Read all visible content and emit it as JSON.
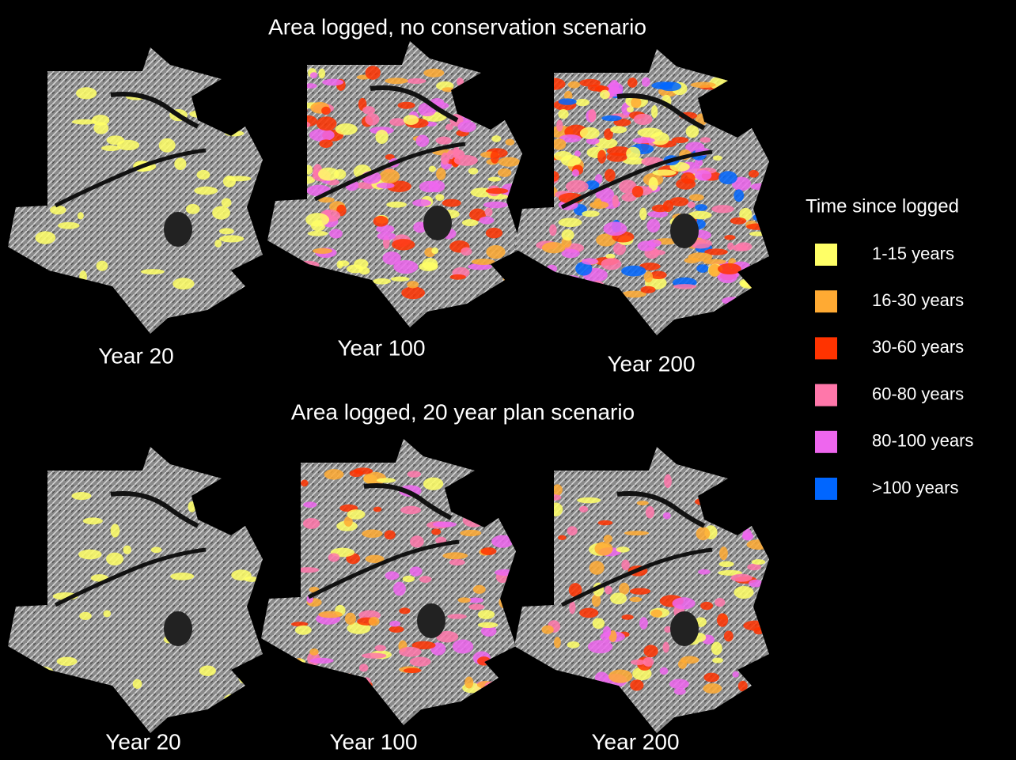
{
  "panels": [
    {
      "title": "Area logged, no conservation scenario",
      "maps": [
        {
          "label": "Year 20"
        },
        {
          "label": "Year 100"
        },
        {
          "label": "Year 200"
        }
      ]
    },
    {
      "title": "Area logged, 20 year plan scenario",
      "maps": [
        {
          "label": "Year 20"
        },
        {
          "label": "Year 100"
        },
        {
          "label": "Year 200"
        }
      ]
    }
  ],
  "legend": {
    "title": "Time since logged",
    "items": [
      {
        "label": "1-15 years",
        "color": "#ffff66"
      },
      {
        "label": "16-30 years",
        "color": "#ffaa33"
      },
      {
        "label": "30-60 years",
        "color": "#ff3300"
      },
      {
        "label": "60-80 years",
        "color": "#ff77aa"
      },
      {
        "label": "80-100 years",
        "color": "#ee66ee"
      },
      {
        "label": ">100 years",
        "color": "#0066ff"
      }
    ]
  }
}
